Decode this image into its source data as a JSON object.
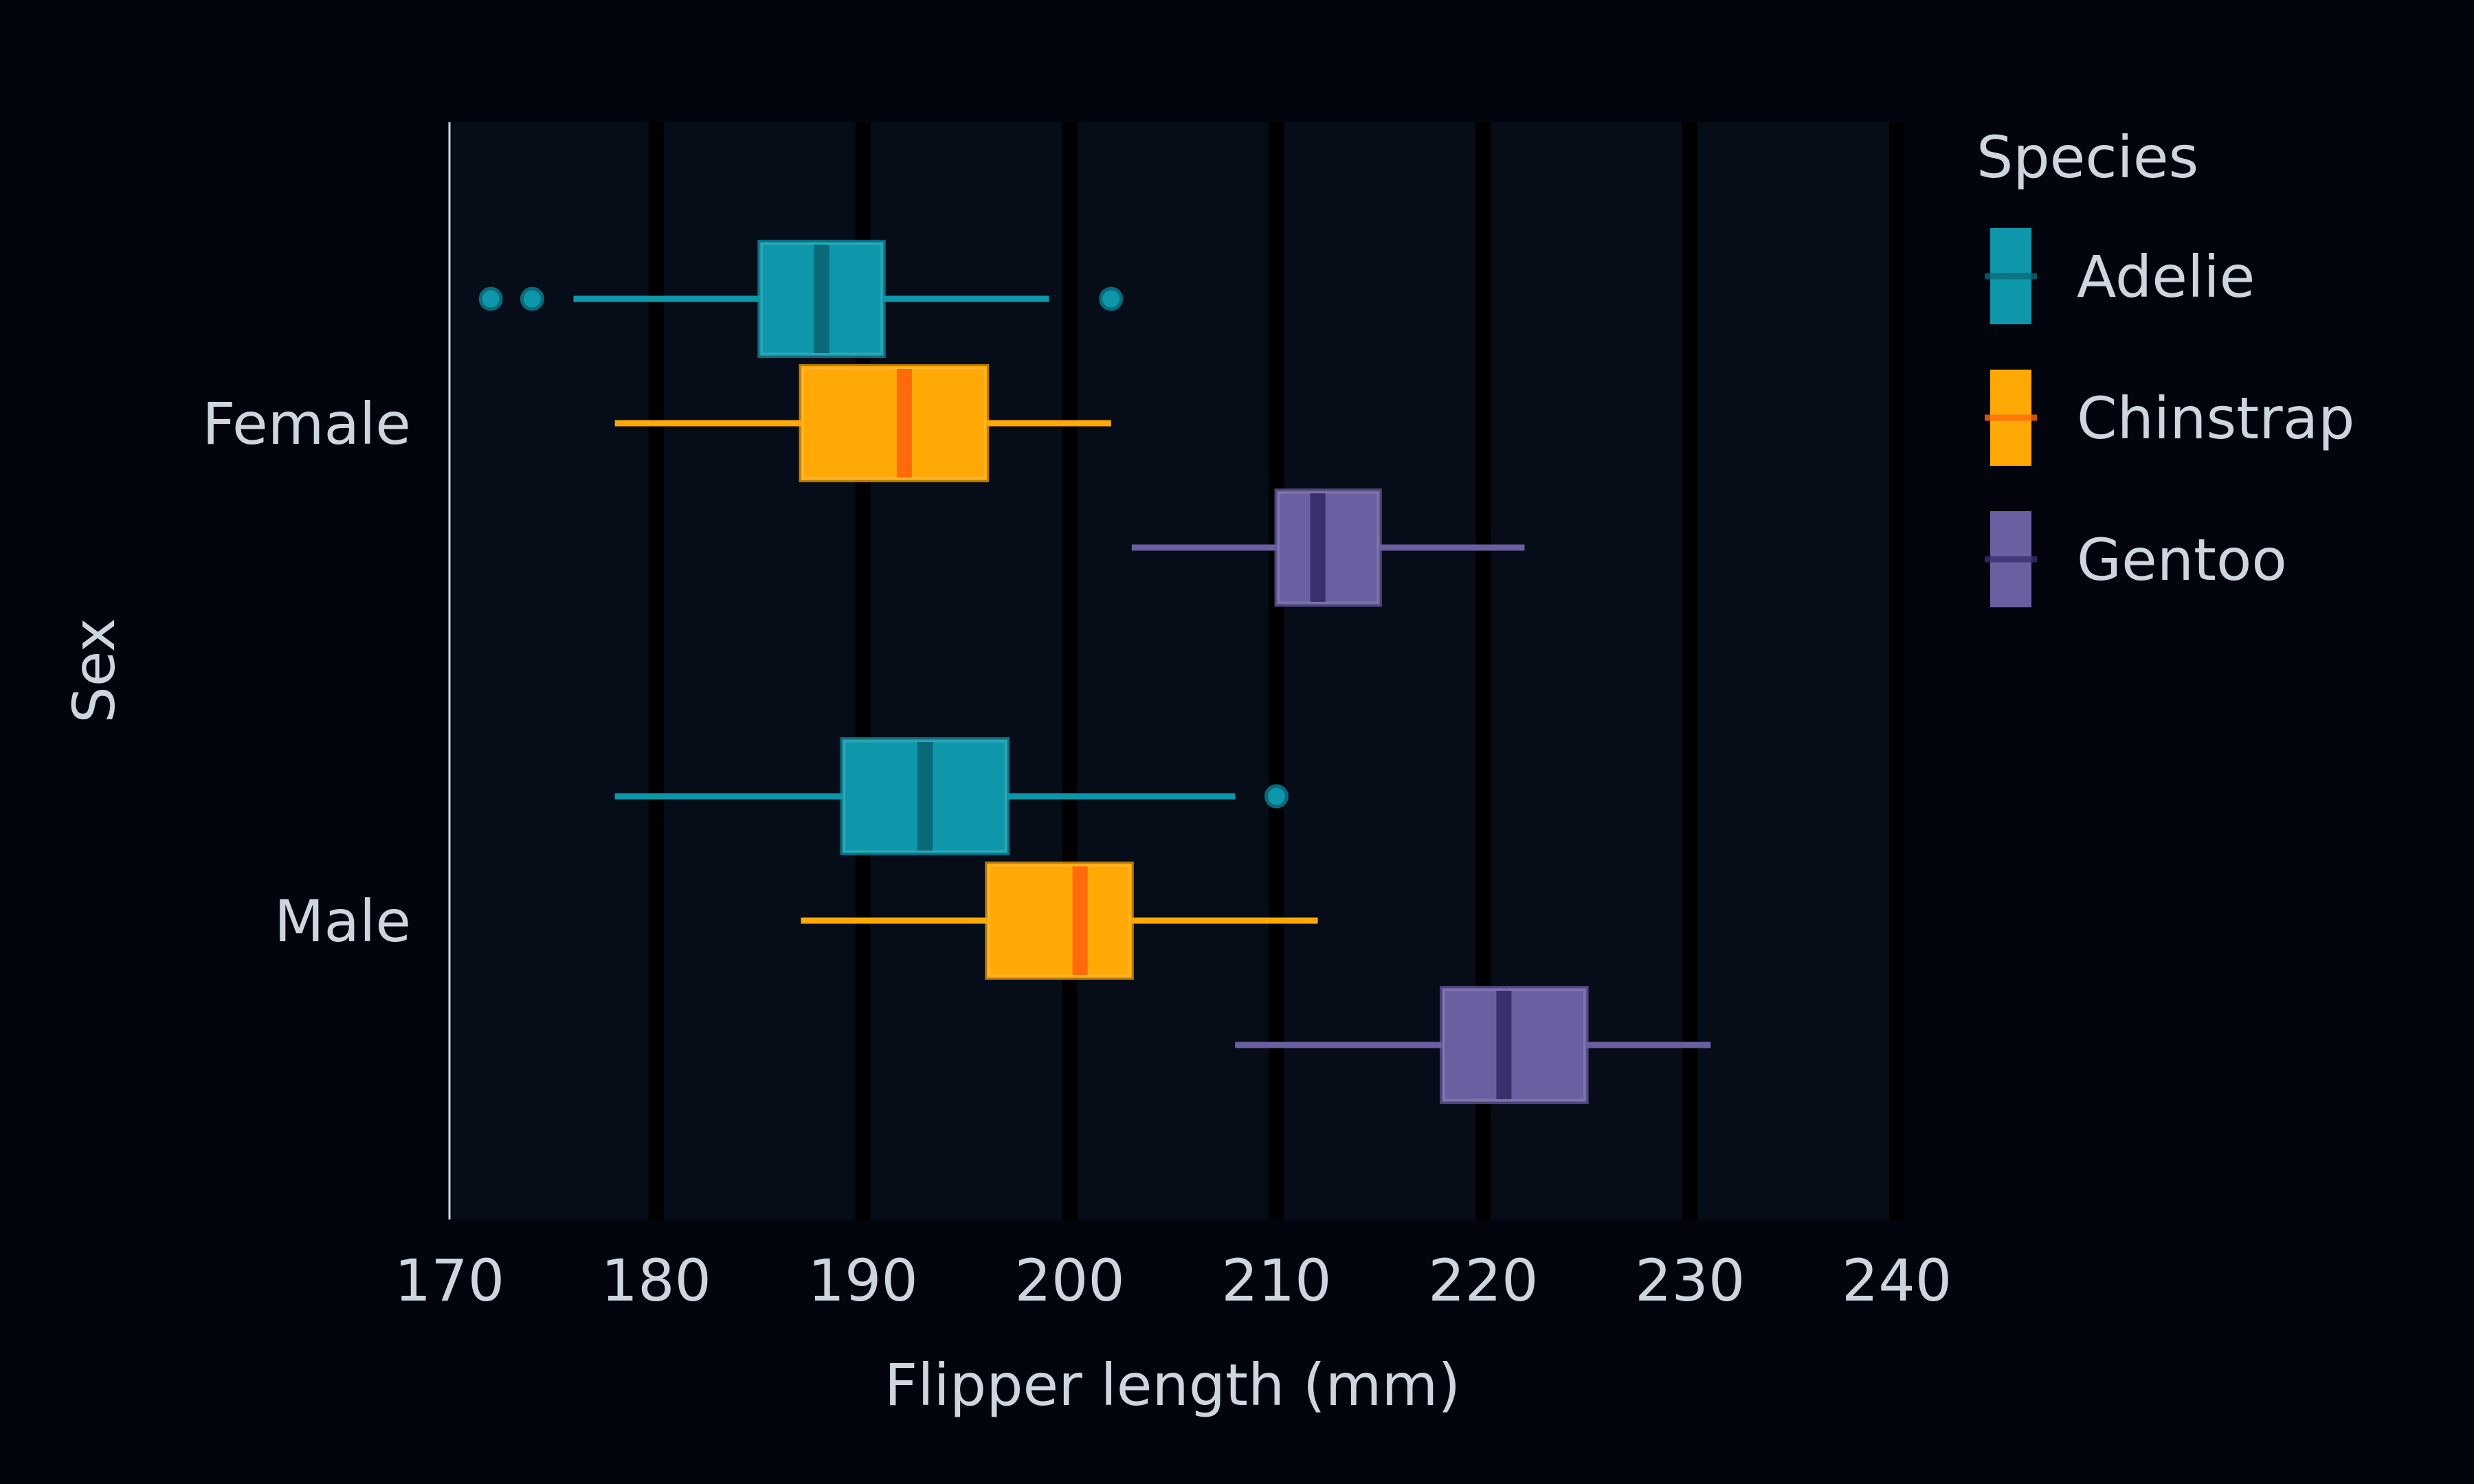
{
  "chart_data": {
    "type": "boxplot",
    "orientation": "horizontal",
    "xlabel": "Flipper length (mm)",
    "ylabel": "Sex",
    "xlim": [
      170,
      240
    ],
    "xticks": [
      170,
      180,
      190,
      200,
      210,
      220,
      230,
      240
    ],
    "categories": [
      "Female",
      "Male"
    ],
    "grid": true,
    "legend": {
      "title": "Species",
      "position": "right",
      "entries": [
        "Adelie",
        "Chinstrap",
        "Gentoo"
      ]
    },
    "series": [
      {
        "name": "Adelie",
        "color": "#0e97aa",
        "median_color": "#0b6a7a",
        "boxes": [
          {
            "category": "Female",
            "whisker_low": 176,
            "q1": 185,
            "median": 188,
            "q3": 191,
            "whisker_high": 199,
            "outliers": [
              172,
              174,
              202
            ]
          },
          {
            "category": "Male",
            "whisker_low": 178,
            "q1": 189,
            "median": 193,
            "q3": 197,
            "whisker_high": 208,
            "outliers": [
              210
            ]
          }
        ]
      },
      {
        "name": "Chinstrap",
        "color": "#ffa806",
        "median_color": "#ff6a0a",
        "boxes": [
          {
            "category": "Female",
            "whisker_low": 178,
            "q1": 187,
            "median": 192,
            "q3": 196,
            "whisker_high": 202,
            "outliers": []
          },
          {
            "category": "Male",
            "whisker_low": 187,
            "q1": 196,
            "median": 200.5,
            "q3": 203,
            "whisker_high": 212,
            "outliers": []
          }
        ]
      },
      {
        "name": "Gentoo",
        "color": "#6a5fa0",
        "median_color": "#3b2f6e",
        "boxes": [
          {
            "category": "Female",
            "whisker_low": 203,
            "q1": 210,
            "median": 212,
            "q3": 215,
            "whisker_high": 222,
            "outliers": []
          },
          {
            "category": "Male",
            "whisker_low": 208,
            "q1": 218,
            "median": 221,
            "q3": 225,
            "whisker_high": 231,
            "outliers": []
          }
        ]
      }
    ]
  }
}
